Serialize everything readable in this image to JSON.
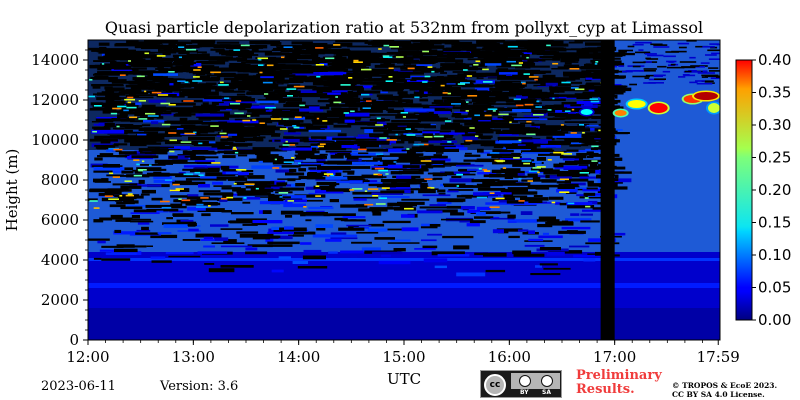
{
  "chart_data": {
    "type": "heatmap",
    "title": "Quasi particle depolarization ratio at 532nm from pollyxt_cyp at Limassol",
    "xlabel": "UTC",
    "ylabel": "Height (m)",
    "x_range": [
      "12:00",
      "17:59"
    ],
    "x_ticks": [
      "12:00",
      "13:00",
      "14:00",
      "15:00",
      "16:00",
      "17:00",
      "17:59"
    ],
    "y_range": [
      0,
      15000
    ],
    "y_ticks": [
      "0",
      "2000",
      "4000",
      "6000",
      "8000",
      "10000",
      "12000",
      "14000"
    ],
    "colorbar": {
      "range": [
        0.0,
        0.4
      ],
      "ticks": [
        "0.00",
        "0.05",
        "0.10",
        "0.15",
        "0.20",
        "0.25",
        "0.30",
        "0.35",
        "0.40"
      ],
      "colormap": "jet"
    },
    "features": [
      {
        "label": "aerosol layer",
        "height_m": 2700,
        "value": 0.06
      },
      {
        "label": "aerosol layer top",
        "height_m": 4000,
        "value": 0.07
      },
      {
        "label": "no data gap",
        "start_utc": "16:52",
        "end_utc": "17:00"
      },
      {
        "label": "ice cloud",
        "start_utc": "17:00",
        "end_utc": "17:59",
        "height_m": 11500,
        "value": 0.35
      }
    ],
    "background_value": 0.02
  },
  "footer": {
    "date": "2023-06-11",
    "version": "Version: 3.6",
    "preliminary_line1": "Preliminary",
    "preliminary_line2": "Results.",
    "license_line1": "© TROPOS & EcoE 2023.",
    "license_line2": "CC BY SA 4.0 License.",
    "cc_badge": {
      "cc": "cc",
      "by": "BY",
      "sa": "SA"
    }
  },
  "colors": {
    "accent_red": "#f03c3c",
    "no_data": "#000000"
  }
}
